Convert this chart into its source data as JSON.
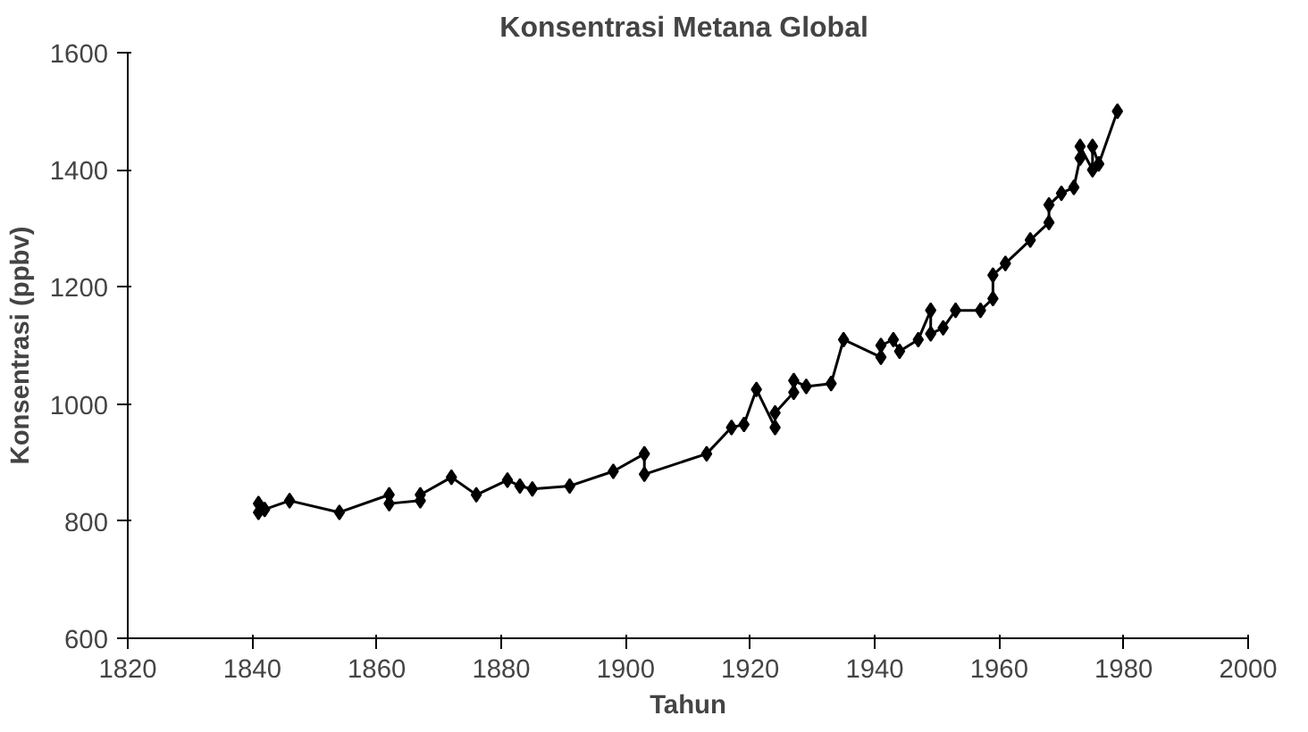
{
  "chart_data": {
    "type": "line",
    "title": "Konsentrasi Metana  Global",
    "xlabel": "Tahun",
    "ylabel": "Konsentrasi (ppbv)",
    "marker": "diamond",
    "line_style": "solid",
    "grid": false,
    "xlim": [
      1820,
      2000
    ],
    "xticks": [
      1820,
      1840,
      1860,
      1880,
      1900,
      1920,
      1940,
      1960,
      1980,
      2000
    ],
    "ylim": [
      600,
      1600
    ],
    "yticks": [
      600,
      800,
      1000,
      1200,
      1400,
      1600
    ],
    "series": [
      {
        "color": "#000000",
        "x": [
          1841,
          1841,
          1842,
          1846,
          1854,
          1862,
          1862,
          1867,
          1867,
          1872,
          1876,
          1881,
          1883,
          1885,
          1891,
          1898,
          1903,
          1903,
          1913,
          1917,
          1919,
          1921,
          1924,
          1924,
          1927,
          1927,
          1929,
          1933,
          1935,
          1941,
          1941,
          1943,
          1944,
          1947,
          1949,
          1949,
          1951,
          1953,
          1957,
          1959,
          1959,
          1961,
          1965,
          1968,
          1968,
          1970,
          1972,
          1973,
          1973,
          1975,
          1975,
          1976,
          1979
        ],
        "values": [
          830,
          815,
          820,
          835,
          815,
          845,
          830,
          835,
          845,
          875,
          845,
          870,
          860,
          855,
          860,
          885,
          915,
          880,
          915,
          960,
          965,
          1025,
          960,
          985,
          1020,
          1040,
          1030,
          1035,
          1110,
          1080,
          1100,
          1110,
          1090,
          1110,
          1160,
          1120,
          1130,
          1160,
          1160,
          1180,
          1220,
          1240,
          1280,
          1310,
          1340,
          1360,
          1370,
          1420,
          1440,
          1400,
          1440,
          1410,
          1500
        ]
      }
    ]
  }
}
